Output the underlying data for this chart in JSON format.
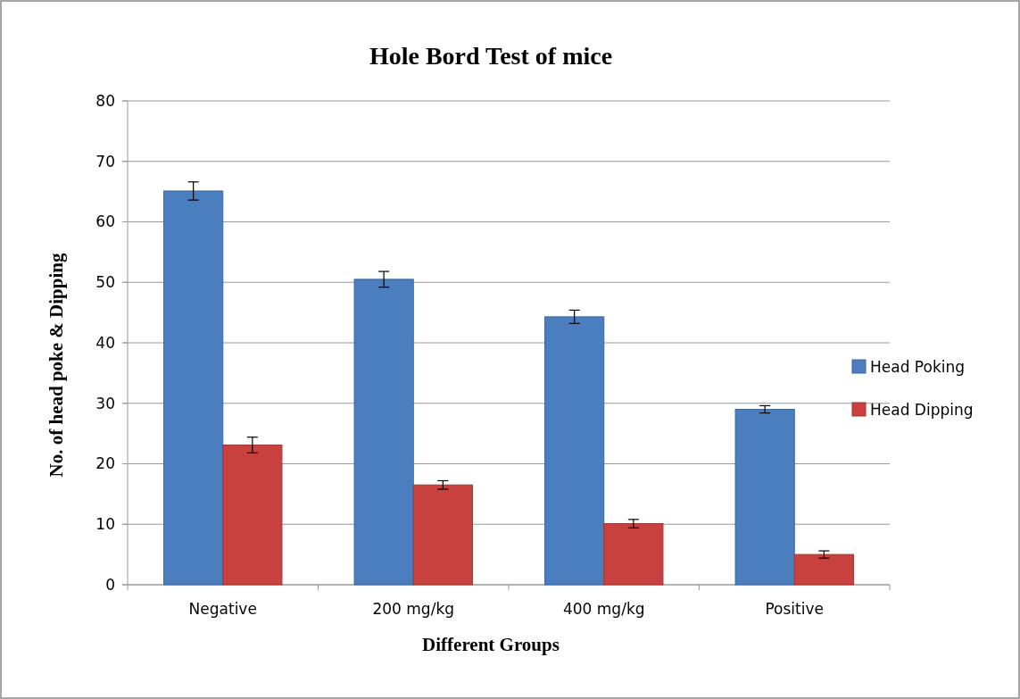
{
  "chart_data": {
    "type": "bar",
    "title": "Hole Bord Test of mice",
    "xlabel": "Different Groups",
    "ylabel": "No. of head poke & Dipping",
    "categories": [
      "Negative",
      "200 mg/kg",
      "400 mg/kg",
      "Positive"
    ],
    "series": [
      {
        "name": "Head Poking",
        "color": "#4a7ebf",
        "values": [
          65.1,
          50.5,
          44.3,
          29.0
        ],
        "errors": [
          1.5,
          1.3,
          1.1,
          0.6
        ]
      },
      {
        "name": "Head Dipping",
        "color": "#c9413e",
        "values": [
          23.1,
          16.5,
          10.1,
          5.0
        ],
        "errors": [
          1.3,
          0.7,
          0.7,
          0.6
        ]
      }
    ],
    "ylim": [
      0,
      80
    ],
    "yticks": [
      0,
      10,
      20,
      30,
      40,
      50,
      60,
      70,
      80
    ],
    "grid": "y",
    "legend": "right"
  }
}
